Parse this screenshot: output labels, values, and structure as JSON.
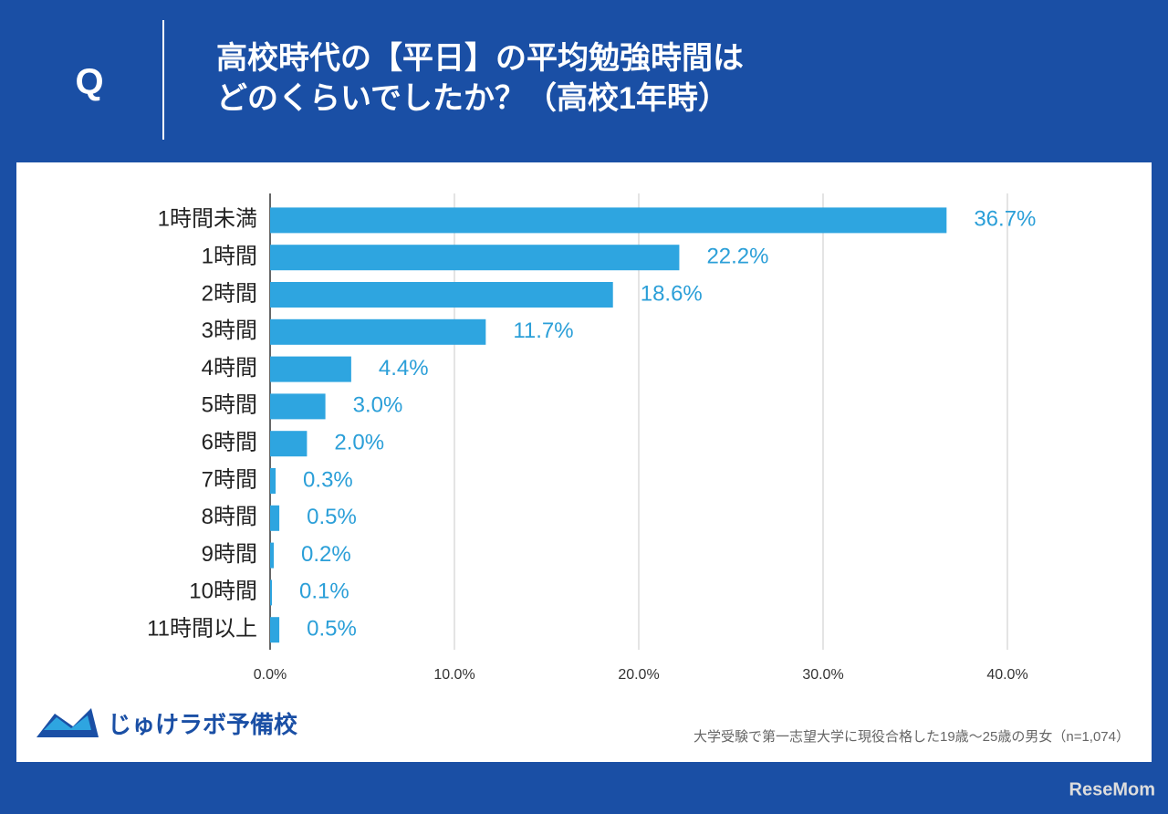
{
  "header": {
    "q": "Q",
    "title": [
      "高校時代の【平日】の平均勉強時間は",
      "どのくらいでしたか？（高校1年時）"
    ]
  },
  "chart_data": {
    "type": "bar",
    "orientation": "horizontal",
    "categories": [
      "1時間未満",
      "1時間",
      "2時間",
      "3時間",
      "4時間",
      "5時間",
      "6時間",
      "7時間",
      "8時間",
      "9時間",
      "10時間",
      "11時間以上"
    ],
    "values": [
      36.7,
      22.2,
      18.6,
      11.7,
      4.4,
      3.0,
      2.0,
      0.3,
      0.5,
      0.2,
      0.1,
      0.5
    ],
    "value_labels": [
      "36.7%",
      "22.2%",
      "18.6%",
      "11.7%",
      "4.4%",
      "3.0%",
      "2.0%",
      "0.3%",
      "0.5%",
      "0.2%",
      "0.1%",
      "0.5%"
    ],
    "color": "#2ea5e0",
    "xlim": [
      0,
      40
    ],
    "xticks": [
      {
        "value": 0,
        "label": "0.0%"
      },
      {
        "value": 10,
        "label": "10.0%"
      },
      {
        "value": 20,
        "label": "20.0%"
      },
      {
        "value": 30,
        "label": "30.0%"
      },
      {
        "value": 40,
        "label": "40.0%"
      }
    ],
    "grid": true
  },
  "footer": {
    "logo": "じゅけラボ予備校",
    "note": "大学受験で第一志望大学に現役合格した19歳～25歳の男女（n=1,074）",
    "watermark": "ReseMom"
  }
}
